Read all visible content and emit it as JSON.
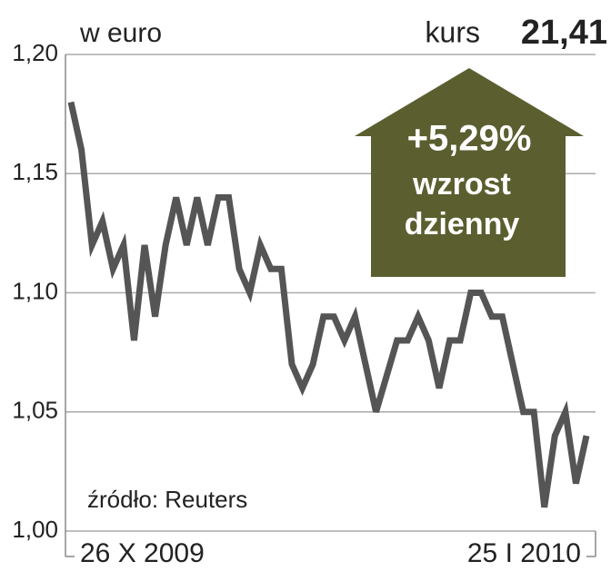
{
  "chart_data": {
    "type": "line",
    "unit_label": "w euro",
    "price_label": "kurs",
    "price_value": "21,41",
    "change": "+5,29%",
    "change_lines": [
      "wzrost",
      "dzienny"
    ],
    "source": "źródło: Reuters",
    "categories": [
      "26 X 2009",
      null,
      null,
      null,
      null,
      null,
      null,
      null,
      null,
      null,
      null,
      null,
      null,
      null,
      null,
      null,
      null,
      null,
      null,
      null,
      null,
      null,
      null,
      null,
      null,
      null,
      null,
      null,
      null,
      null,
      null,
      null,
      null,
      null,
      null,
      null,
      null,
      null,
      null,
      null,
      null,
      null,
      null,
      null,
      null,
      null,
      null,
      null,
      null,
      "25 I 2010"
    ],
    "series": [
      {
        "color": "#555555",
        "values": [
          1.18,
          1.16,
          1.12,
          1.13,
          1.11,
          1.12,
          1.08,
          1.12,
          1.09,
          1.12,
          1.14,
          1.12,
          1.14,
          1.12,
          1.14,
          1.14,
          1.11,
          1.1,
          1.12,
          1.11,
          1.11,
          1.07,
          1.06,
          1.07,
          1.09,
          1.09,
          1.08,
          1.09,
          1.07,
          1.05,
          1.065,
          1.08,
          1.08,
          1.09,
          1.08,
          1.06,
          1.08,
          1.08,
          1.1,
          1.1,
          1.09,
          1.09,
          1.07,
          1.05,
          1.05,
          1.01,
          1.04,
          1.05,
          1.02,
          1.04
        ]
      }
    ],
    "ylim": [
      1.0,
      1.2
    ],
    "yticks": [
      {
        "value": 1.0,
        "label": "1,00"
      },
      {
        "value": 1.05,
        "label": "1,05"
      },
      {
        "value": 1.1,
        "label": "1,10"
      },
      {
        "value": 1.15,
        "label": "1,15"
      },
      {
        "value": 1.2,
        "label": "1,20"
      }
    ],
    "grid": true,
    "arrow_color": "#5b5e2f"
  }
}
